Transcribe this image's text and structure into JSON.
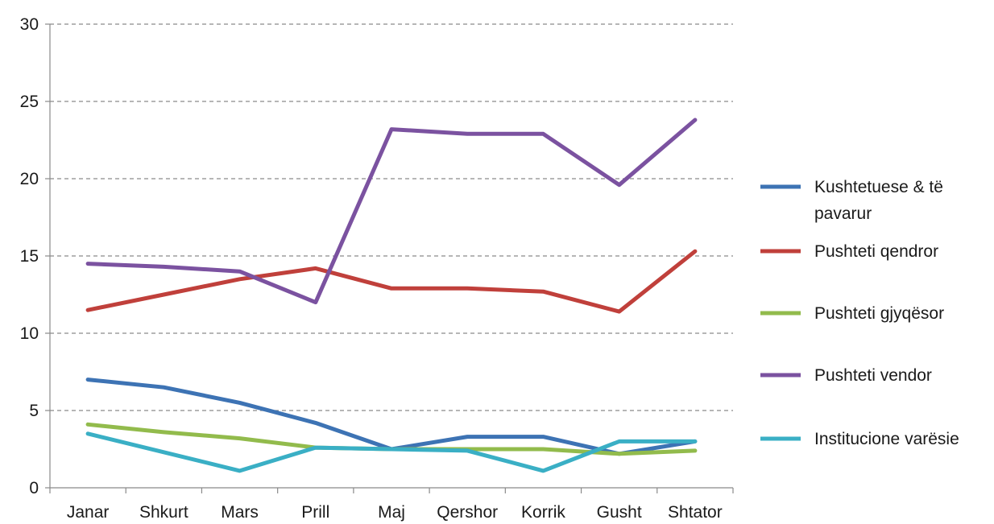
{
  "chart_data": {
    "type": "line",
    "title": "",
    "xlabel": "",
    "ylabel": "",
    "categories": [
      "Janar",
      "Shkurt",
      "Mars",
      "Prill",
      "Maj",
      "Qershor",
      "Korrik",
      "Gusht",
      "Shtator"
    ],
    "ylim": [
      0,
      30
    ],
    "yticks": [
      "0",
      "5",
      "10",
      "15",
      "20",
      "25",
      "30"
    ],
    "grid": "horizontal-dashed",
    "legend_position": "right",
    "series": [
      {
        "name": "Kushtetuese & të pavarur",
        "legend_lines": [
          "Kushtetuese & të",
          "pavarur"
        ],
        "color": "#3d73b4",
        "values": [
          7.0,
          6.5,
          5.5,
          4.2,
          2.5,
          3.3,
          3.3,
          2.2,
          3.0
        ]
      },
      {
        "name": "Pushteti qendror",
        "legend_lines": [
          "Pushteti qendror"
        ],
        "color": "#c0403b",
        "values": [
          11.5,
          12.5,
          13.5,
          14.2,
          12.9,
          12.9,
          12.7,
          11.4,
          15.3
        ]
      },
      {
        "name": "Pushteti gjyqësor",
        "legend_lines": [
          "Pushteti gjyqësor"
        ],
        "color": "#92bb4c",
        "values": [
          4.1,
          3.6,
          3.2,
          2.6,
          2.5,
          2.5,
          2.5,
          2.2,
          2.4
        ]
      },
      {
        "name": "Pushteti vendor",
        "legend_lines": [
          "Pushteti vendor"
        ],
        "color": "#7b52a0",
        "values": [
          14.5,
          14.3,
          14.0,
          12.0,
          23.2,
          22.9,
          22.9,
          19.6,
          23.8
        ]
      },
      {
        "name": "Institucione varësie",
        "legend_lines": [
          "Institucione varësie"
        ],
        "color": "#3aafc5",
        "values": [
          3.5,
          2.3,
          1.1,
          2.6,
          2.5,
          2.4,
          1.1,
          3.0,
          3.0
        ]
      }
    ]
  }
}
